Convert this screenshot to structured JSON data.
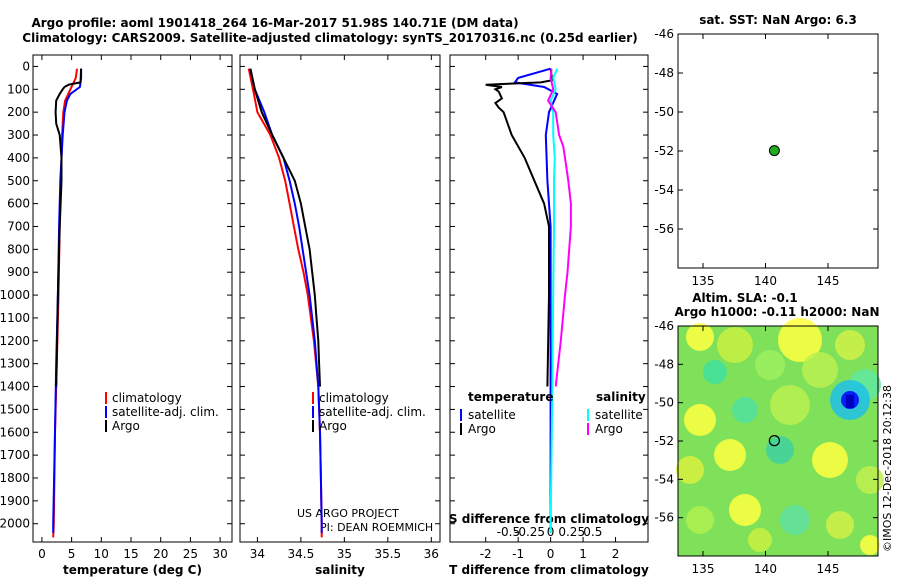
{
  "header": {
    "title_line1": "Argo profile: aoml 1901418_264 16-Mar-2017 51.98S 140.71E (DM data)",
    "title_line2": "Climatology: CARS2009. Satellite-adjusted climatology: synTS_20170316.nc (0.25d earlier)"
  },
  "credits": {
    "project": "US ARGO PROJECT",
    "pi": "PI: DEAN ROEMMICH",
    "imos": "©IMOS 12-Dec-2018 20:12:38"
  },
  "colors": {
    "climatology": "#ff0000",
    "satellite": "#0000ff",
    "argo": "#000000",
    "sal_satellite": "#00ffff",
    "sal_argo": "#ff00ff"
  },
  "depth_ticks": [
    0,
    100,
    200,
    300,
    400,
    500,
    600,
    700,
    800,
    900,
    1000,
    1100,
    1200,
    1300,
    1400,
    1500,
    1600,
    1700,
    1800,
    1900,
    2000
  ],
  "depth_tick_labels": [
    "0",
    "100",
    "200",
    "300",
    "400",
    "500",
    "600",
    "700",
    "800",
    "900",
    "1000",
    "1100",
    "1200",
    "1300",
    "1400",
    "1500",
    "1600",
    "1700",
    "1800",
    "1900",
    "2000"
  ],
  "chart_data": [
    {
      "type": "line",
      "name": "temperature",
      "xlabel": "temperature (deg C)",
      "xlim": [
        -1.5,
        32
      ],
      "ylim": [
        -50,
        2080
      ],
      "xticks": [
        0,
        5,
        10,
        15,
        20,
        25,
        30
      ],
      "xtick_labels": [
        "0",
        "5",
        "10",
        "15",
        "20",
        "25",
        "30"
      ],
      "legend": [
        "climatology",
        "satellite-adj. clim.",
        "Argo"
      ],
      "series": [
        {
          "name": "climatology",
          "depth": [
            10,
            50,
            100,
            150,
            200,
            300,
            400,
            500,
            700,
            1000,
            1300,
            1600,
            2000,
            2060
          ],
          "values": [
            5.9,
            5.7,
            4.8,
            3.9,
            3.6,
            3.4,
            3.3,
            3.2,
            3.0,
            2.8,
            2.5,
            2.2,
            2.0,
            1.9
          ]
        },
        {
          "name": "satellite-adj. clim.",
          "depth": [
            10,
            50,
            90,
            120,
            150,
            200,
            300,
            400,
            500,
            700,
            1000,
            1300,
            1600,
            2000,
            2040
          ],
          "values": [
            6.6,
            6.6,
            6.4,
            4.8,
            4.2,
            3.8,
            3.5,
            3.3,
            3.1,
            2.9,
            2.7,
            2.4,
            2.2,
            1.9,
            1.9
          ]
        },
        {
          "name": "Argo",
          "depth": [
            10,
            70,
            80,
            90,
            100,
            120,
            150,
            200,
            250,
            300,
            400,
            500,
            700,
            1000,
            1400
          ],
          "values": [
            6.6,
            6.5,
            4.5,
            3.8,
            3.5,
            3.0,
            2.4,
            2.3,
            2.4,
            3.0,
            3.3,
            3.3,
            3.0,
            2.7,
            2.4
          ]
        }
      ]
    },
    {
      "type": "line",
      "name": "salinity",
      "xlabel": "salinity",
      "xlim": [
        33.8,
        36.1
      ],
      "ylim": [
        -50,
        2080
      ],
      "xticks": [
        34,
        34.5,
        35,
        35.5,
        36
      ],
      "xtick_labels": [
        "34",
        "34.5",
        "35",
        "35.5",
        "36"
      ],
      "legend": [
        "climatology",
        "satellite-adj. clim.",
        "Argo"
      ],
      "series": [
        {
          "name": "climatology",
          "depth": [
            10,
            100,
            200,
            300,
            400,
            500,
            600,
            700,
            800,
            900,
            1000,
            1200,
            1400,
            1600,
            1800,
            2000,
            2060
          ],
          "values": [
            33.9,
            33.95,
            34.0,
            34.15,
            34.25,
            34.32,
            34.37,
            34.42,
            34.47,
            34.53,
            34.58,
            34.65,
            34.7,
            34.72,
            34.73,
            34.74,
            34.74
          ]
        },
        {
          "name": "satellite-adj. clim.",
          "depth": [
            10,
            100,
            200,
            300,
            400,
            500,
            600,
            700,
            800,
            900,
            1000,
            1200,
            1400,
            1600,
            1800,
            2000,
            2040
          ],
          "values": [
            33.92,
            33.97,
            34.08,
            34.17,
            34.3,
            34.37,
            34.43,
            34.48,
            34.52,
            34.56,
            34.6,
            34.66,
            34.7,
            34.72,
            34.73,
            34.74,
            34.74
          ]
        },
        {
          "name": "Argo",
          "depth": [
            10,
            100,
            200,
            300,
            400,
            500,
            600,
            700,
            800,
            900,
            1000,
            1100,
            1200,
            1300,
            1400
          ],
          "values": [
            33.92,
            33.97,
            34.05,
            34.17,
            34.3,
            34.43,
            34.5,
            34.55,
            34.6,
            34.63,
            34.66,
            34.68,
            34.7,
            34.71,
            34.72
          ]
        }
      ]
    },
    {
      "type": "line",
      "name": "differences",
      "xlabel": "T difference from climatology",
      "xlabel_top": "S difference from climatology",
      "xlim": [
        -3.1,
        3.0
      ],
      "ylim": [
        -50,
        2080
      ],
      "xticks": [
        -2,
        -1,
        0,
        1,
        2
      ],
      "xtick_labels": [
        "-2",
        "-1",
        "0",
        "1",
        "2"
      ],
      "xticks_s": [
        -0.5,
        -0.25,
        0,
        0.25,
        0.5
      ],
      "xtick_labels_s": [
        "-0.5",
        "-0.25",
        "0",
        "0.25",
        "0.5"
      ],
      "legend_t_title": "temperature",
      "legend_s_title": "salinity",
      "legend": [
        "satellite",
        "Argo",
        "satellite",
        "Argo"
      ],
      "series": [
        {
          "name": "T satellite",
          "depth": [
            10,
            50,
            70,
            90,
            120,
            200,
            300,
            500,
            700,
            1000,
            1400,
            1700,
            2000,
            2040
          ],
          "values": [
            0.0,
            -1.0,
            -1.1,
            -0.2,
            0.2,
            -0.05,
            -0.15,
            -0.1,
            0.0,
            0.0,
            0.0,
            0.0,
            0.0,
            0.0
          ]
        },
        {
          "name": "T Argo",
          "depth": [
            10,
            60,
            70,
            80,
            90,
            100,
            110,
            140,
            160,
            180,
            200,
            300,
            400,
            500,
            600,
            700,
            1000,
            1400
          ],
          "values": [
            0.0,
            0.05,
            -0.3,
            -2.0,
            -1.5,
            -1.7,
            -1.6,
            -1.5,
            -1.7,
            -1.6,
            -1.45,
            -1.2,
            -0.8,
            -0.5,
            -0.2,
            -0.05,
            -0.05,
            -0.1
          ]
        },
        {
          "name": "S satellite",
          "depth": [
            10,
            50,
            100,
            150,
            200,
            300,
            400,
            500,
            700,
            1000,
            1400,
            1700,
            2000,
            2040
          ],
          "values": [
            0.08,
            0.03,
            0.06,
            0.0,
            0.03,
            0.03,
            0.05,
            0.04,
            0.04,
            0.03,
            0.02,
            0.01,
            0.0,
            0.0
          ]
        },
        {
          "name": "S Argo",
          "depth": [
            10,
            50,
            100,
            150,
            200,
            250,
            300,
            350,
            400,
            500,
            600,
            700,
            800,
            900,
            1000,
            1200,
            1400
          ],
          "values": [
            0.01,
            0.0,
            0.03,
            -0.03,
            0.06,
            0.08,
            0.1,
            0.15,
            0.17,
            0.21,
            0.24,
            0.24,
            0.22,
            0.2,
            0.17,
            0.12,
            0.06
          ]
        }
      ]
    },
    {
      "type": "scatter",
      "name": "sst_map",
      "title": "sat. SST: NaN Argo: 6.3",
      "xlim": [
        133,
        149
      ],
      "ylim": [
        -58,
        -46
      ],
      "xticks": [
        135,
        140,
        145
      ],
      "xtick_labels": [
        "135",
        "140",
        "145"
      ],
      "yticks": [
        -46,
        -48,
        -50,
        -52,
        -54,
        -56
      ],
      "ytick_labels": [
        "-46",
        "-48",
        "-50",
        "-52",
        "-54",
        "-56"
      ],
      "points": [
        {
          "lon": 140.71,
          "lat": -51.98
        }
      ]
    },
    {
      "type": "heatmap",
      "name": "sla_map",
      "title_line1": "Altim. SLA: -0.1",
      "title_line2": "Argo h1000: -0.11 h2000: NaN",
      "xlim": [
        133,
        149
      ],
      "ylim": [
        -58,
        -46
      ],
      "xticks": [
        135,
        140,
        145
      ],
      "xtick_labels": [
        "135",
        "140",
        "145"
      ],
      "yticks": [
        -46,
        -48,
        -50,
        -52,
        -54,
        -56
      ],
      "ytick_labels": [
        "-46",
        "-48",
        "-50",
        "-52",
        "-54",
        "-56"
      ],
      "points": [
        {
          "lon": 140.71,
          "lat": -51.98
        }
      ]
    }
  ]
}
